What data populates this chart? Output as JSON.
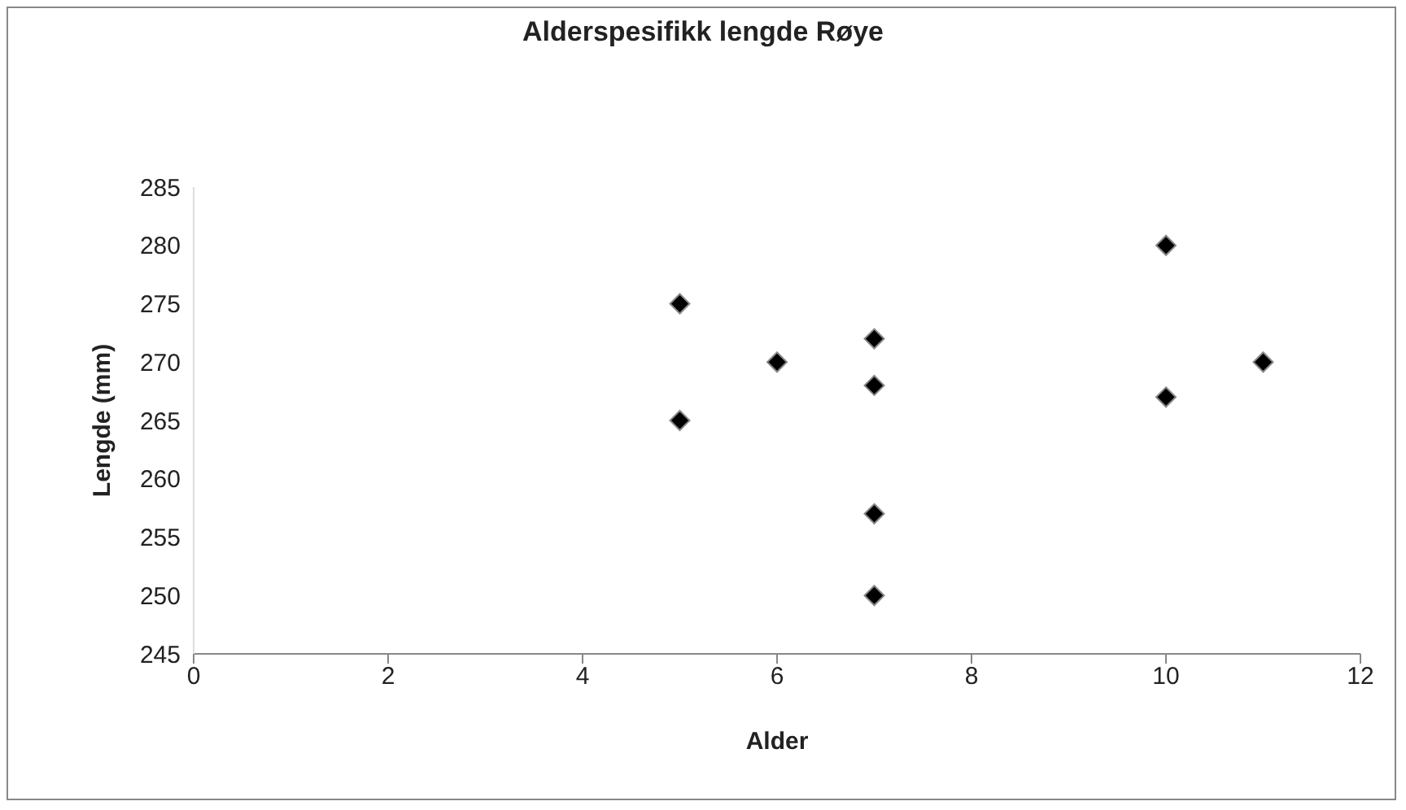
{
  "chart_data": {
    "type": "scatter",
    "title": "Alderspesifikk lengde Røye",
    "xlabel": "Alder",
    "ylabel": "Lengde (mm)",
    "x": [
      5,
      5,
      6,
      7,
      7,
      7,
      7,
      10,
      10,
      11
    ],
    "values": [
      275,
      265,
      270,
      272,
      268,
      257,
      250,
      280,
      267,
      270
    ],
    "color": "#000000",
    "marker": "diamond",
    "xlim": [
      0,
      12
    ],
    "xticks": [
      0,
      2,
      4,
      6,
      8,
      10,
      12
    ],
    "ylim": [
      245,
      285
    ],
    "yticks": [
      245,
      250,
      255,
      260,
      265,
      270,
      275,
      280,
      285
    ],
    "grid": false
  }
}
